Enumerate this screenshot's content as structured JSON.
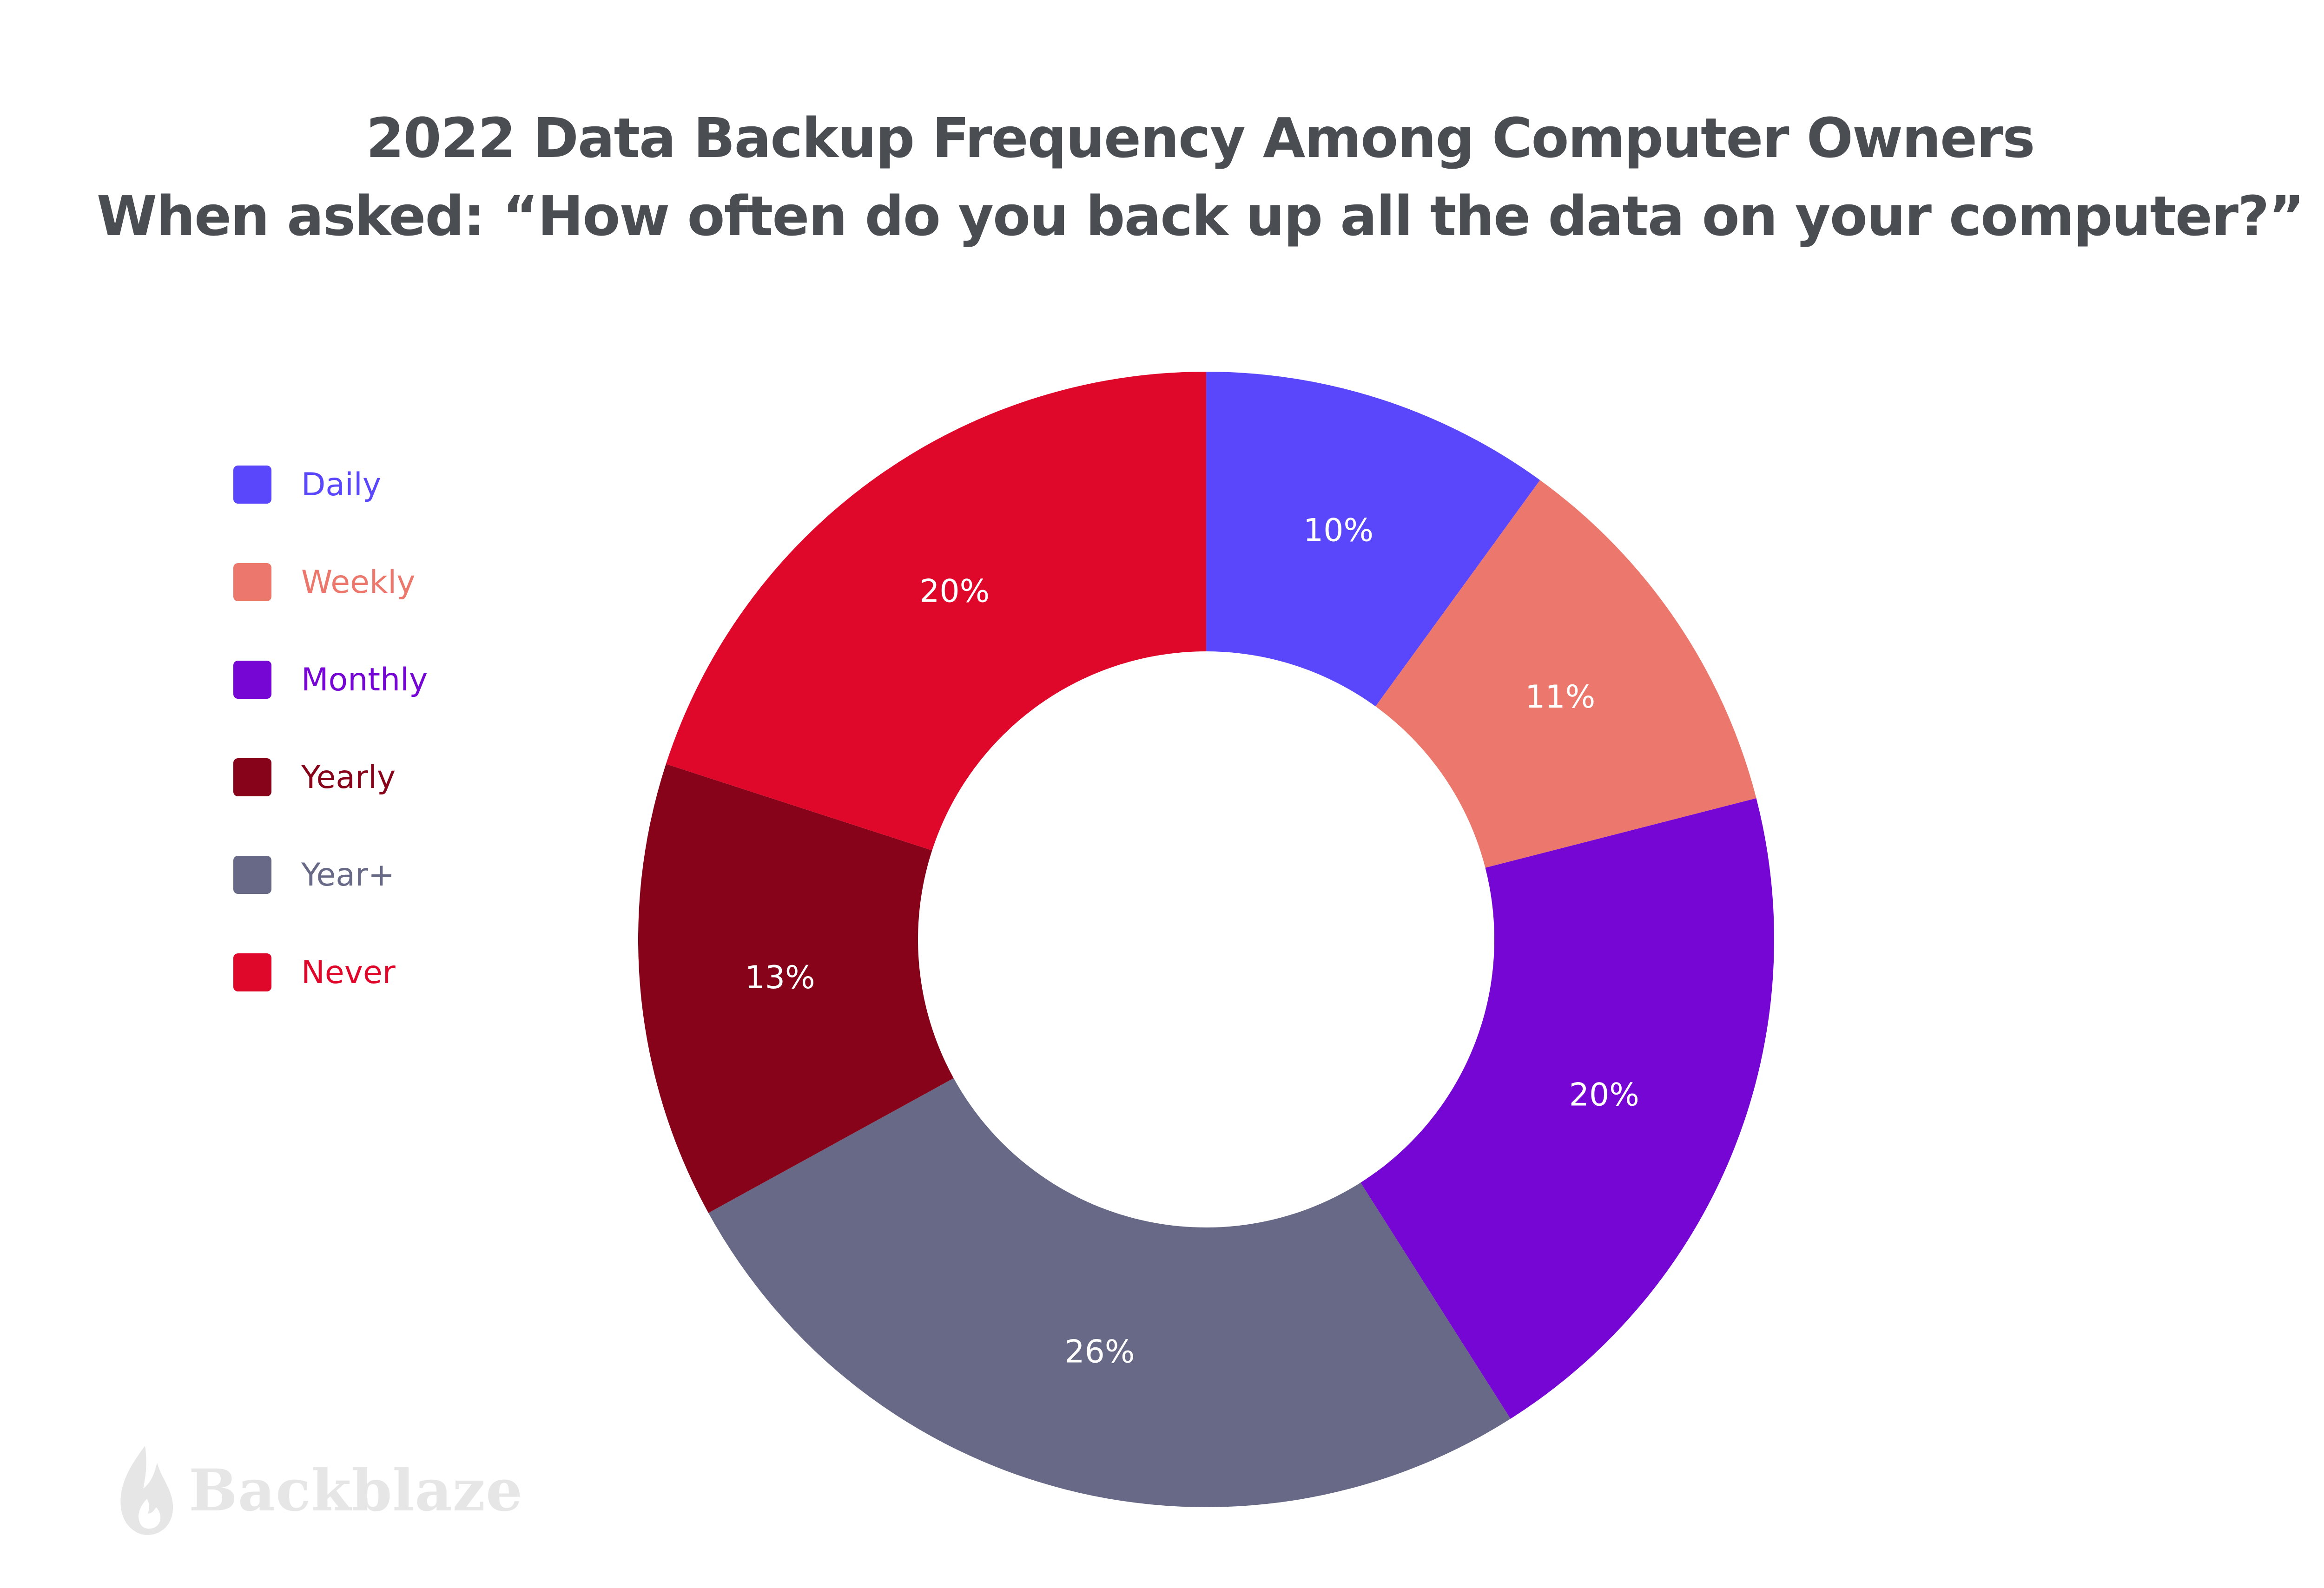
{
  "chart_data": {
    "type": "pie",
    "variant": "donut",
    "title": "2022 Data Backup Frequency Among Computer Owners",
    "subtitle": "When asked: “How often do you back up all the data on your computer?”",
    "categories": [
      "Daily",
      "Weekly",
      "Monthly",
      "Yearly",
      "Year+",
      "Never"
    ],
    "values": [
      10,
      11,
      20,
      13,
      26,
      20
    ],
    "data_labels": [
      "10%",
      "11%",
      "20%",
      "13%",
      "26%",
      "20%"
    ],
    "slice_order_clockwise_from_top": [
      "Daily",
      "Weekly",
      "Monthly",
      "Year+",
      "Yearly",
      "Never"
    ],
    "colors": {
      "Daily": "#5b47fb",
      "Weekly": "#ec786d",
      "Monthly": "#7506d4",
      "Yearly": "#86031a",
      "Year+": "#676986",
      "Never": "#e0082a"
    },
    "legend_placement": "left",
    "legend_text_colored": true
  },
  "brand": {
    "name": "Backblaze",
    "icon": "flame-icon"
  }
}
